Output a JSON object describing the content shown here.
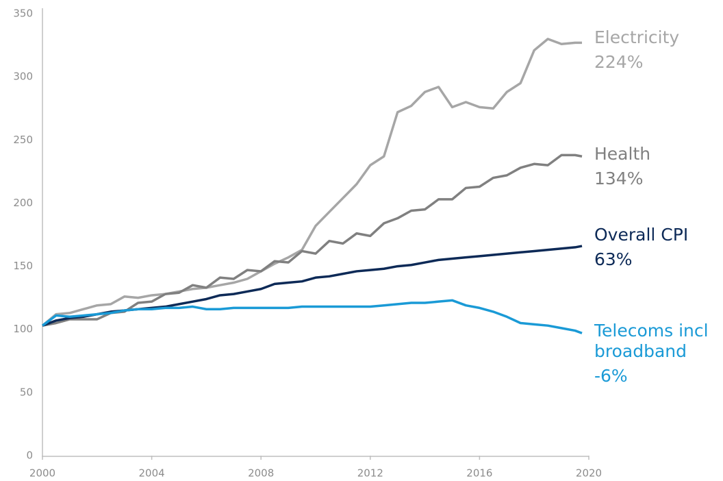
{
  "chart_data": {
    "type": "line",
    "x": [
      2000,
      2000.5,
      2001,
      2001.5,
      2002,
      2002.5,
      2003,
      2003.5,
      2004,
      2004.5,
      2005,
      2005.5,
      2006,
      2006.5,
      2007,
      2007.5,
      2008,
      2008.5,
      2009,
      2009.5,
      2010,
      2010.5,
      2011,
      2011.5,
      2012,
      2012.5,
      2013,
      2013.5,
      2014,
      2014.5,
      2015,
      2015.5,
      2016,
      2016.5,
      2017,
      2017.5,
      2018,
      2018.5,
      2019,
      2019.5,
      2019.75
    ],
    "series": [
      {
        "name": "Electricity",
        "change_label": "224%",
        "color": "#a6a6a6",
        "values": [
          103,
          112,
          113,
          116,
          119,
          120,
          126,
          125,
          127,
          128,
          130,
          132,
          133,
          135,
          137,
          140,
          146,
          152,
          157,
          163,
          182,
          193,
          204,
          215,
          230,
          237,
          272,
          277,
          288,
          292,
          276,
          280,
          276,
          275,
          288,
          295,
          321,
          330,
          326,
          327,
          327
        ]
      },
      {
        "name": "Health",
        "change_label": "134%",
        "color": "#808080",
        "values": [
          103,
          105,
          108,
          108,
          108,
          113,
          114,
          121,
          122,
          128,
          129,
          135,
          133,
          141,
          140,
          147,
          146,
          154,
          153,
          162,
          160,
          170,
          168,
          176,
          174,
          184,
          188,
          194,
          195,
          203,
          203,
          212,
          213,
          220,
          222,
          228,
          231,
          230,
          238,
          238,
          237
        ]
      },
      {
        "name": "Overall CPI",
        "change_label": "63%",
        "color": "#0d2a57",
        "values": [
          103,
          107,
          109,
          110,
          112,
          114,
          115,
          116,
          117,
          118,
          120,
          122,
          124,
          127,
          128,
          130,
          132,
          136,
          137,
          138,
          141,
          142,
          144,
          146,
          147,
          148,
          150,
          151,
          153,
          155,
          156,
          157,
          158,
          159,
          160,
          161,
          162,
          163,
          164,
          165,
          166
        ]
      },
      {
        "name": "Telecoms incl broadband",
        "change_label": "-6%",
        "color": "#1a9ad6",
        "values": [
          103,
          111,
          110,
          111,
          112,
          113,
          115,
          116,
          116,
          117,
          117,
          118,
          116,
          116,
          117,
          117,
          117,
          117,
          117,
          118,
          118,
          118,
          118,
          118,
          118,
          119,
          120,
          121,
          121,
          122,
          123,
          119,
          117,
          114,
          110,
          105,
          104,
          103,
          101,
          99,
          97
        ]
      }
    ],
    "xlim": [
      2000,
      2020
    ],
    "xticks": [
      2000,
      2004,
      2008,
      2012,
      2016,
      2020
    ],
    "ylim": [
      0,
      350
    ],
    "yticks": [
      0,
      50,
      100,
      150,
      200,
      250,
      300,
      350
    ]
  }
}
